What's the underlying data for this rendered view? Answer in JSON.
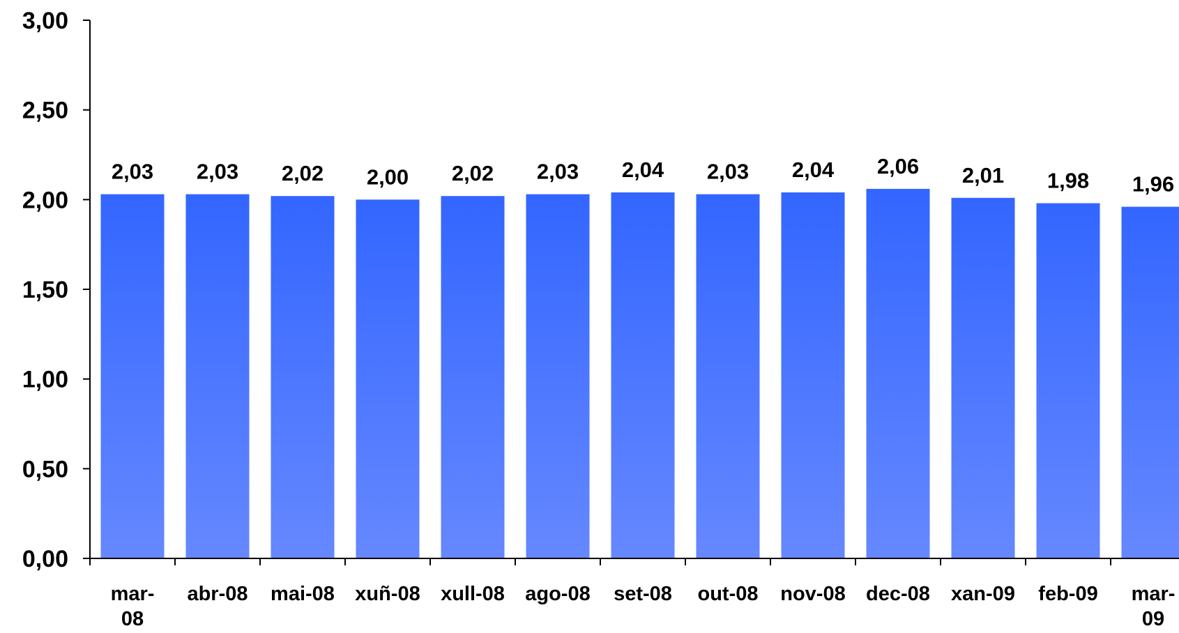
{
  "chart_data": {
    "type": "bar",
    "categories": [
      "mar-08",
      "abr-08",
      "mai-08",
      "xuñ-08",
      "xull-08",
      "ago-08",
      "set-08",
      "out-08",
      "nov-08",
      "dec-08",
      "xan-09",
      "feb-09",
      "mar-09"
    ],
    "values": [
      2.03,
      2.03,
      2.02,
      2.0,
      2.02,
      2.03,
      2.04,
      2.03,
      2.04,
      2.06,
      2.01,
      1.98,
      1.96
    ],
    "value_labels": [
      "2,03",
      "2,03",
      "2,02",
      "2,00",
      "2,02",
      "2,03",
      "2,04",
      "2,03",
      "2,04",
      "2,06",
      "2,01",
      "1,98",
      "1,96"
    ],
    "category_lines": [
      [
        "mar-",
        "08"
      ],
      [
        "abr-08"
      ],
      [
        "mai-08"
      ],
      [
        "xuñ-08"
      ],
      [
        "xull-08"
      ],
      [
        "ago-08"
      ],
      [
        "set-08"
      ],
      [
        "out-08"
      ],
      [
        "nov-08"
      ],
      [
        "dec-08"
      ],
      [
        "xan-09"
      ],
      [
        "feb-09"
      ],
      [
        "mar-",
        "09"
      ]
    ],
    "title": "",
    "xlabel": "",
    "ylabel": "",
    "ylim": [
      0,
      3
    ],
    "yticks": [
      0,
      0.5,
      1,
      1.5,
      2,
      2.5,
      3
    ],
    "ytick_labels": [
      "0,00",
      "0,50",
      "1,00",
      "1,50",
      "2,00",
      "2,50",
      "3,00"
    ],
    "grid": false,
    "legend": "none",
    "colors": {
      "bar_top": "#3366ff",
      "bar_bottom": "#6688ff",
      "axis": "#000000",
      "text": "#000000"
    }
  }
}
